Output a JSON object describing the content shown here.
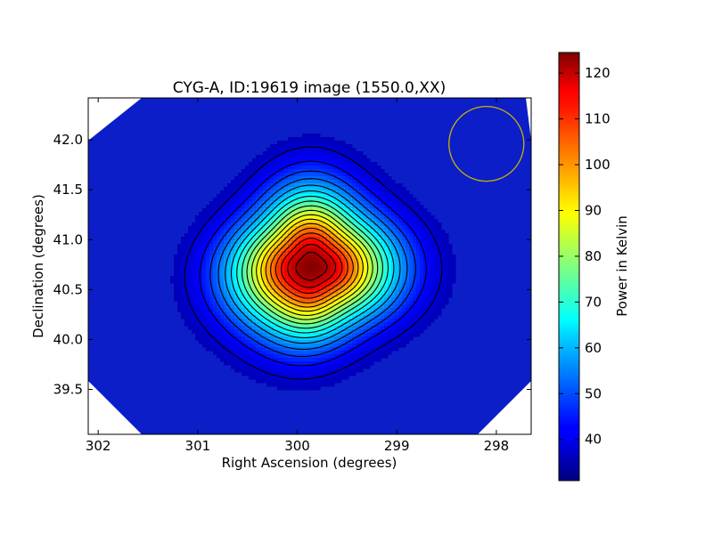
{
  "chart_data": {
    "type": "heatmap",
    "title": "CYG-A, ID:19619 image (1550.0,XX)",
    "xlabel": "Right Ascension (degrees)",
    "ylabel": "Declination (degrees)",
    "xlim": [
      302.1,
      297.65
    ],
    "ylim": [
      39.05,
      42.42
    ],
    "x_ticks": [
      302,
      301,
      300,
      299,
      298
    ],
    "x_tick_labels": [
      "302",
      "301",
      "300",
      "299",
      "298"
    ],
    "y_ticks": [
      39.5,
      40.0,
      40.5,
      41.0,
      41.5,
      42.0
    ],
    "y_tick_labels": [
      "39.5",
      "40.0",
      "40.5",
      "41.0",
      "41.5",
      "42.0"
    ],
    "colormap": "jet",
    "colorbar": {
      "label": "Power in Kelvin",
      "range": [
        31,
        124.5
      ],
      "ticks": [
        40,
        50,
        60,
        70,
        80,
        90,
        100,
        110,
        120
      ],
      "tick_labels": [
        "40",
        "50",
        "60",
        "70",
        "80",
        "90",
        "100",
        "110",
        "120"
      ]
    },
    "source": {
      "center_ra": 299.86,
      "center_dec": 40.73,
      "peak_kelvin": 124,
      "background_kelvin": 33,
      "contours": 18
    },
    "beam_circle": {
      "ra": 298.1,
      "dec": 41.96,
      "color": "#c8b400"
    },
    "grid": false
  }
}
